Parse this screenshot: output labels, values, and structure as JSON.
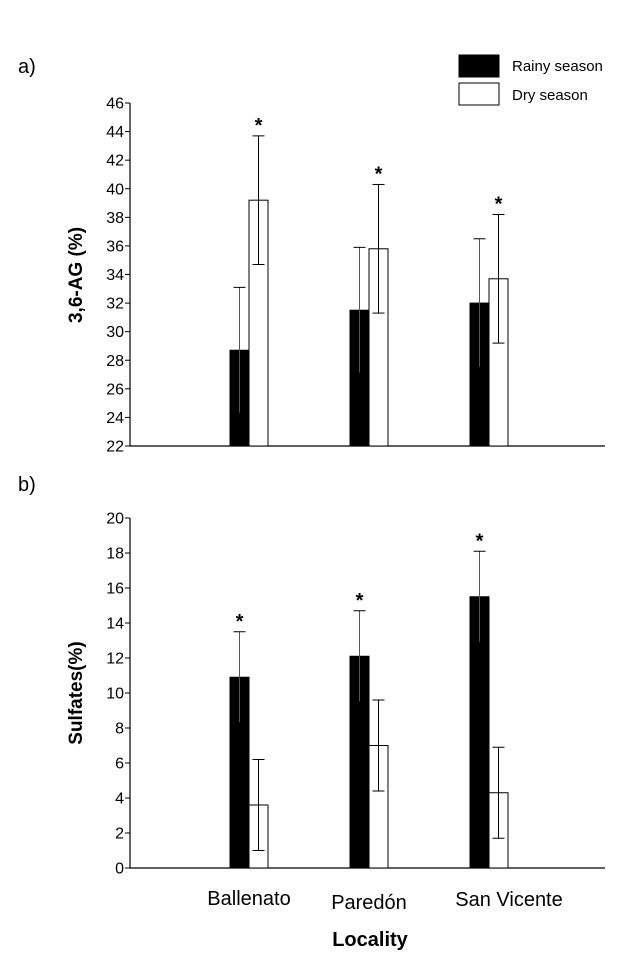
{
  "legend": {
    "rainy_label": "Rainy season",
    "dry_label": "Dry season",
    "rainy_color": "#000000",
    "dry_color": "#ffffff"
  },
  "chart_data": [
    {
      "type": "bar",
      "panel_label": "a)",
      "title": "",
      "xlabel": "",
      "ylabel": "3,6-AG (%)",
      "ylim": [
        22,
        46
      ],
      "yticks": [
        22,
        24,
        26,
        28,
        30,
        32,
        34,
        36,
        38,
        40,
        42,
        44,
        46
      ],
      "categories": [
        "Ballenato",
        "Paredón",
        "San Vicente"
      ],
      "series": [
        {
          "name": "Rainy season",
          "values": [
            28.7,
            31.5,
            32.0
          ],
          "errors": [
            4.4,
            4.4,
            4.5
          ]
        },
        {
          "name": "Dry season",
          "values": [
            39.2,
            35.8,
            33.7
          ],
          "errors": [
            4.5,
            4.5,
            4.5
          ]
        }
      ],
      "annotations": [
        {
          "category": "Ballenato",
          "series": "Dry season",
          "text": "*"
        },
        {
          "category": "Paredón",
          "series": "Dry season",
          "text": "*"
        },
        {
          "category": "San Vicente",
          "series": "Dry season",
          "text": "*"
        }
      ]
    },
    {
      "type": "bar",
      "panel_label": "b)",
      "title": "",
      "xlabel": "Locality",
      "ylabel": "Sulfates(%)",
      "ylim": [
        0,
        20
      ],
      "yticks": [
        0,
        2,
        4,
        6,
        8,
        10,
        12,
        14,
        16,
        18,
        20
      ],
      "categories": [
        "Ballenato",
        "Paredón",
        "San Vicente"
      ],
      "series": [
        {
          "name": "Rainy season",
          "values": [
            10.9,
            12.1,
            15.5
          ],
          "errors": [
            2.6,
            2.6,
            2.6
          ]
        },
        {
          "name": "Dry season",
          "values": [
            3.6,
            7.0,
            4.3
          ],
          "errors": [
            2.6,
            2.6,
            2.6
          ]
        }
      ],
      "annotations": [
        {
          "category": "Ballenato",
          "series": "Rainy season",
          "text": "*"
        },
        {
          "category": "Paredón",
          "series": "Rainy season",
          "text": "*"
        },
        {
          "category": "San Vicente",
          "series": "Rainy season",
          "text": "*"
        }
      ]
    }
  ]
}
